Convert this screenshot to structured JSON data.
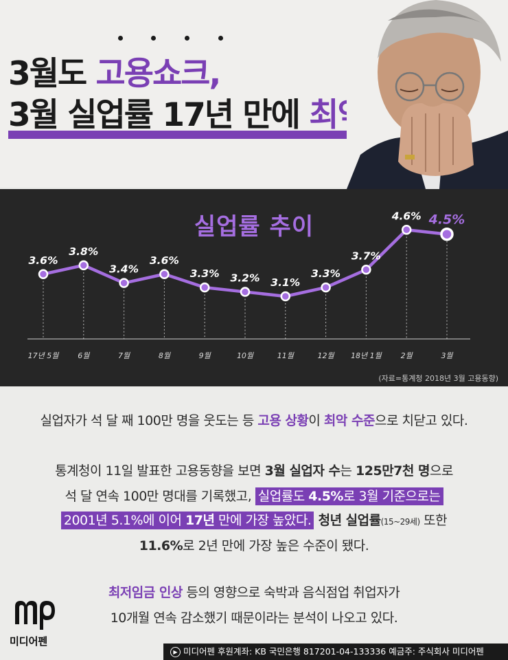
{
  "headline": {
    "line1_plain": "3월도 ",
    "line1_highlight": "고용쇼크,",
    "line2_plain": "3월 실업률 17년 만에 ",
    "line2_highlight": "최악"
  },
  "colors": {
    "accent": "#7a3fb4",
    "accent_light": "#a56ee0",
    "panel": "#262626"
  },
  "chart_data": {
    "type": "line",
    "title": "실업률 추이",
    "categories": [
      "17년 5월",
      "6월",
      "7월",
      "8월",
      "9월",
      "10월",
      "11월",
      "12월",
      "18년 1월",
      "2월",
      "3월"
    ],
    "values": [
      3.6,
      3.8,
      3.4,
      3.6,
      3.3,
      3.2,
      3.1,
      3.3,
      3.7,
      4.6,
      4.5
    ],
    "value_labels": [
      "3.6%",
      "3.8%",
      "3.4%",
      "3.6%",
      "3.3%",
      "3.2%",
      "3.1%",
      "3.3%",
      "3.7%",
      "4.6%",
      "4.5%"
    ],
    "unit": "%",
    "grid": "vertical dashed drop lines",
    "highlight_last": true,
    "source": "(자료=통계청 2018년 3월 고용동향)"
  },
  "para1": {
    "a": "실업자가 석 달 째 100만 명을 웃도는 등 ",
    "b": "고용 상황",
    "c": "이 ",
    "d": "최악 수준",
    "e": "으로 치닫고 있다."
  },
  "para2": {
    "l1a": "통계청이 11일 발표한 고용동향을 보면 ",
    "l1b": "3월 실업자 수",
    "l1c": "는 ",
    "l1d": "125만7천 명",
    "l1e": "으로",
    "l2a": "석 달 연속 100만 명대를 기록했고, ",
    "l2b": "실업률도 ",
    "l2c": "4.5%",
    "l2d": "로 3월 기준으로는",
    "l3a": "2001년 5.1%에 이어 ",
    "l3b": "17년",
    "l3c": " 만에 가장 높았다.",
    "l3d": " 청년 실업률",
    "l3e": "(15~29세)",
    "l3f": " 또한",
    "l4a": "11.6%",
    "l4b": "로 2년 만에 가장 높은 수준이 됐다."
  },
  "para3": {
    "l1a": "최저임금 인상",
    "l1b": " 등의 영향으로 숙박과 음식점업 취업자가",
    "l2": "10개월 연속 감소했기 때문이라는 분석이 나오고 있다."
  },
  "logo": {
    "mark": "mp",
    "name": "미디어펜"
  },
  "footer": {
    "icon": "arrow-circle-icon",
    "text": "미디어펜 후원계좌: KB 국민은행 817201-04-133336 예금주: 주식회사 미디어펜"
  }
}
